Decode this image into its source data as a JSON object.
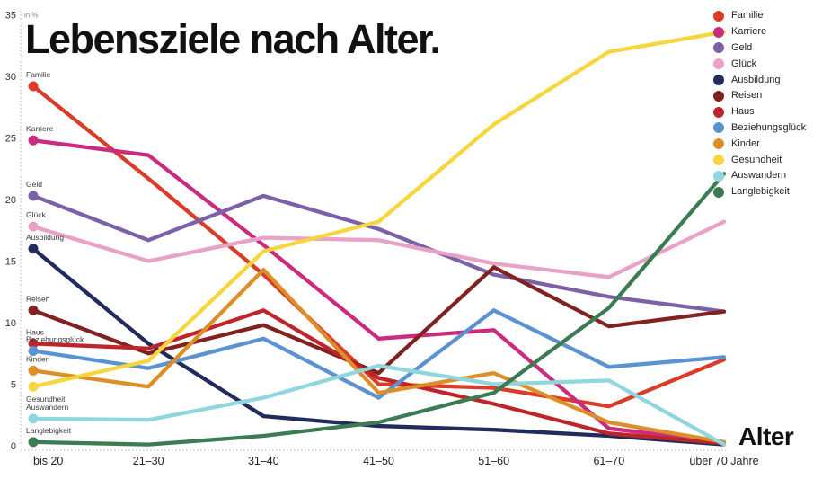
{
  "title": "Lebensziele nach Alter.",
  "y_axis_unit": "in %",
  "x_axis_title": "Alter",
  "chart_data": {
    "type": "line",
    "title": "Lebensziele nach Alter.",
    "xlabel": "Alter",
    "ylabel": "in %",
    "ylim": [
      0,
      35
    ],
    "yticks": [
      35,
      30,
      25,
      20,
      15,
      10,
      5,
      0
    ],
    "grid": "dotted-axes-only",
    "legend_position": "top-right",
    "marker": "start-dot-only",
    "categories": [
      "bis 20",
      "21–30",
      "31–40",
      "41–50",
      "51–60",
      "61–70",
      "über 70 Jahre"
    ],
    "series": [
      {
        "name": "Familie",
        "color": "#d93c28",
        "label_position": "above",
        "values": [
          29.2,
          21.7,
          13.9,
          5.0,
          4.7,
          3.2,
          7.0
        ]
      },
      {
        "name": "Karriere",
        "color": "#cb2b7e",
        "label_position": "above",
        "values": [
          24.8,
          23.6,
          16.3,
          8.7,
          9.4,
          1.4,
          0.3
        ]
      },
      {
        "name": "Geld",
        "color": "#7c60a8",
        "label_position": "above",
        "values": [
          20.3,
          16.7,
          20.3,
          17.6,
          13.9,
          12.1,
          10.9
        ]
      },
      {
        "name": "Glück",
        "color": "#e9a1c5",
        "label_position": "above",
        "values": [
          17.8,
          15.0,
          16.9,
          16.7,
          14.8,
          13.7,
          18.2
        ]
      },
      {
        "name": "Ausbildung",
        "color": "#222c5c",
        "label_position": "above",
        "values": [
          16.0,
          8.3,
          2.4,
          1.6,
          1.3,
          0.8,
          0.1
        ]
      },
      {
        "name": "Reisen",
        "color": "#802220",
        "label_position": "above",
        "values": [
          11.0,
          7.5,
          9.8,
          5.9,
          14.5,
          9.7,
          10.9
        ]
      },
      {
        "name": "Haus",
        "color": "#c0242b",
        "label_position": "above",
        "values": [
          8.3,
          7.9,
          11.0,
          5.5,
          3.4,
          1.0,
          0.2
        ]
      },
      {
        "name": "Beziehungsglück",
        "color": "#5a92d2",
        "label_position": "above",
        "values": [
          7.7,
          6.3,
          8.7,
          3.9,
          11.0,
          6.4,
          7.2
        ]
      },
      {
        "name": "Kinder",
        "color": "#dc8e28",
        "label_position": "above",
        "values": [
          6.1,
          4.8,
          14.3,
          4.3,
          5.9,
          1.9,
          0.3
        ]
      },
      {
        "name": "Gesundheit",
        "color": "#f5d73d",
        "label_position": "below",
        "values": [
          4.8,
          6.9,
          15.8,
          18.2,
          26.1,
          32.0,
          33.6
        ]
      },
      {
        "name": "Auswandern",
        "color": "#90d6de",
        "label_position": "above",
        "values": [
          2.2,
          2.1,
          3.9,
          6.5,
          5.0,
          5.3,
          0.1
        ]
      },
      {
        "name": "Langlebigkeit",
        "color": "#3c7c52",
        "label_position": "above",
        "values": [
          0.3,
          0.1,
          0.8,
          1.9,
          4.3,
          11.2,
          22.1
        ]
      }
    ]
  }
}
